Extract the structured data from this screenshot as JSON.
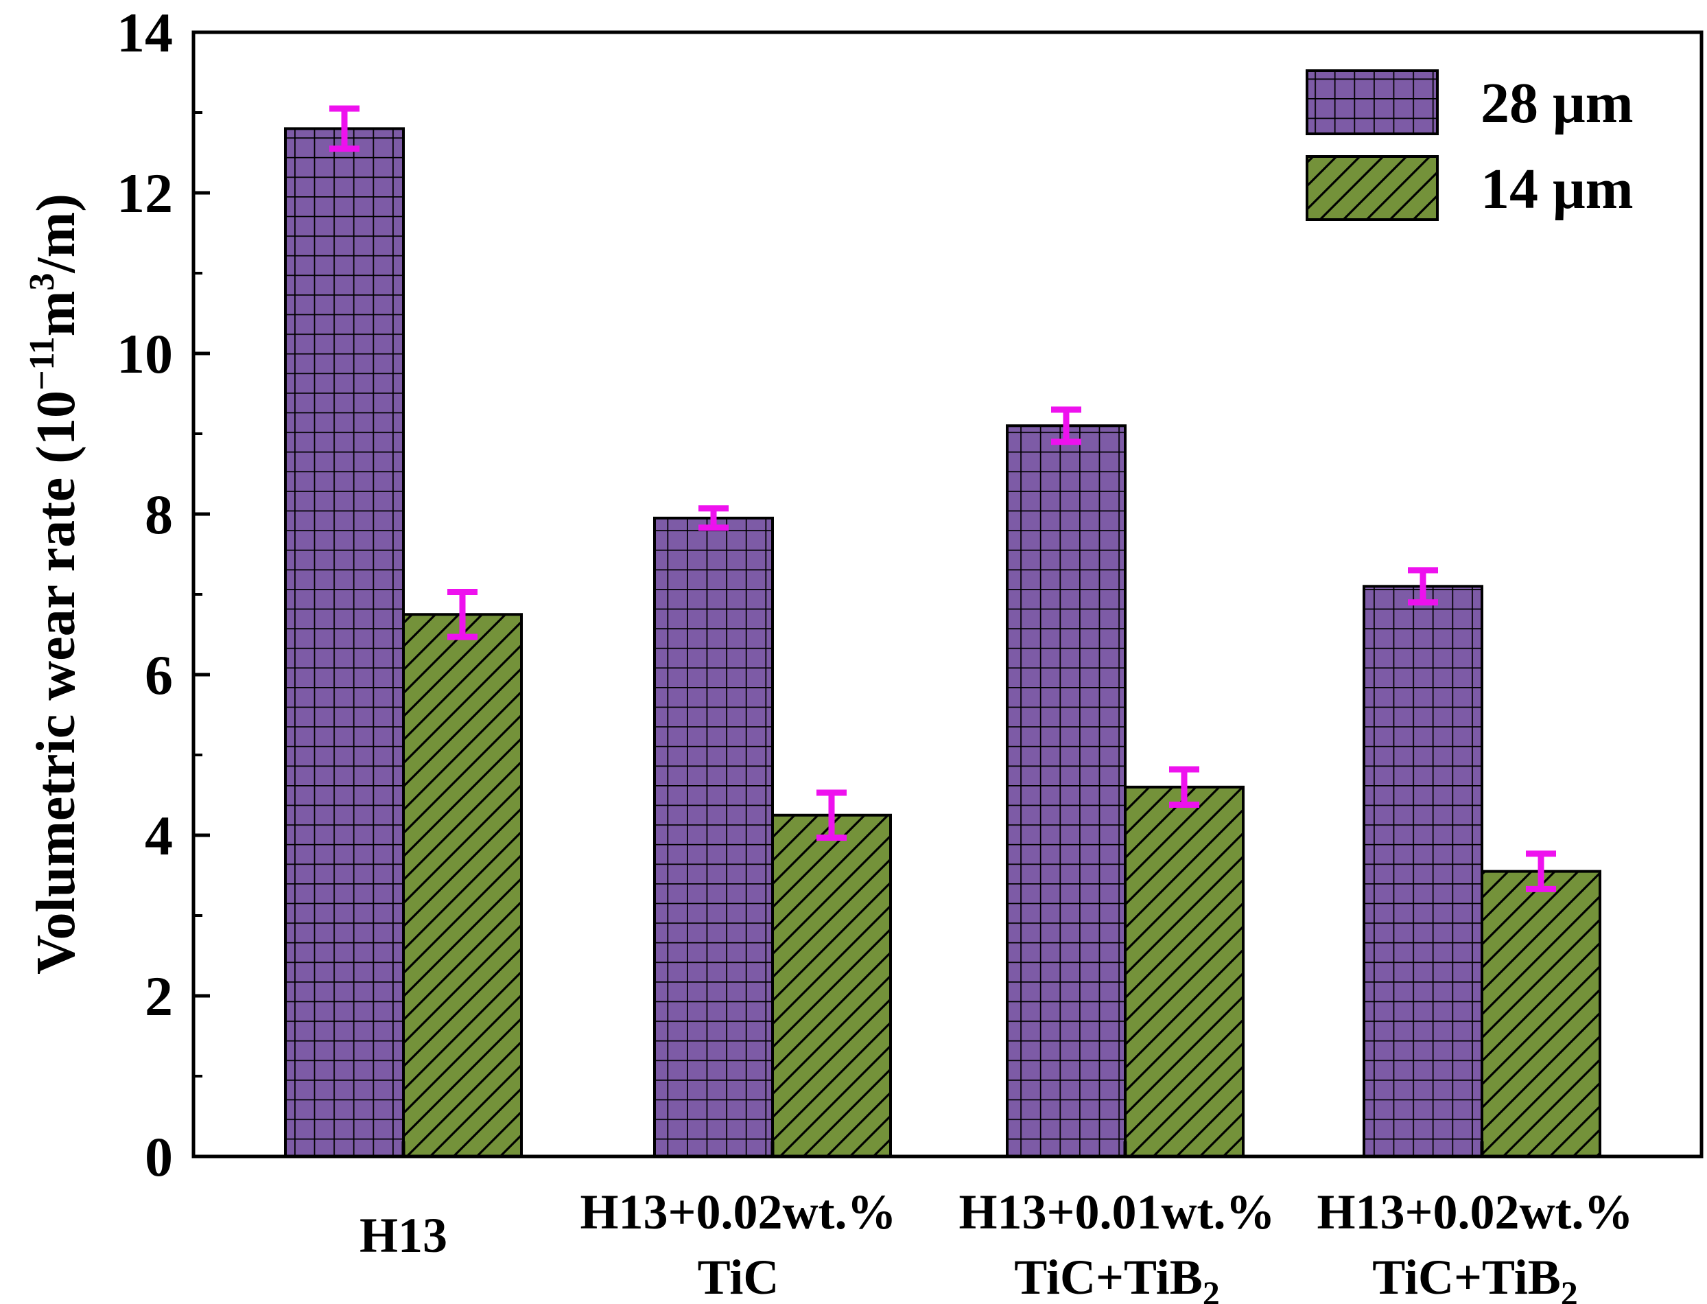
{
  "chart_data": {
    "type": "bar",
    "title": "",
    "xlabel": "",
    "ylabel_text": "Volumetric wear rate (10",
    "ylabel_unit_exponent": "−11",
    "ylabel_unit_base": "m",
    "ylabel_unit_cube": "3",
    "ylabel_unit_tail": "/m)",
    "ylim": [
      0,
      14
    ],
    "yticks": [
      "0",
      "2",
      "4",
      "6",
      "8",
      "10",
      "12",
      "14"
    ],
    "grid": false,
    "legend_position": "top-right",
    "categories": [
      {
        "line1": "H13",
        "line2": "",
        "line2_sub": ""
      },
      {
        "line1": "H13+0.02wt.%",
        "line2": "TiC",
        "line2_sub": ""
      },
      {
        "line1": "H13+0.01wt.%",
        "line2": "TiC+TiB",
        "line2_sub": "2"
      },
      {
        "line1": "H13+0.02wt.%",
        "line2": "TiC+TiB",
        "line2_sub": "2"
      }
    ],
    "series": [
      {
        "name": "28 μm",
        "pattern": "grid",
        "color": "#7d5ba6",
        "values": [
          12.8,
          7.95,
          9.1,
          7.1
        ],
        "errors": [
          0.25,
          0.12,
          0.2,
          0.2
        ]
      },
      {
        "name": "14 μm",
        "pattern": "diagonal",
        "color": "#74923a",
        "values": [
          6.75,
          4.25,
          4.6,
          3.55
        ],
        "errors": [
          0.28,
          0.28,
          0.22,
          0.22
        ]
      }
    ],
    "error_bar_color": "#ee11ee"
  }
}
